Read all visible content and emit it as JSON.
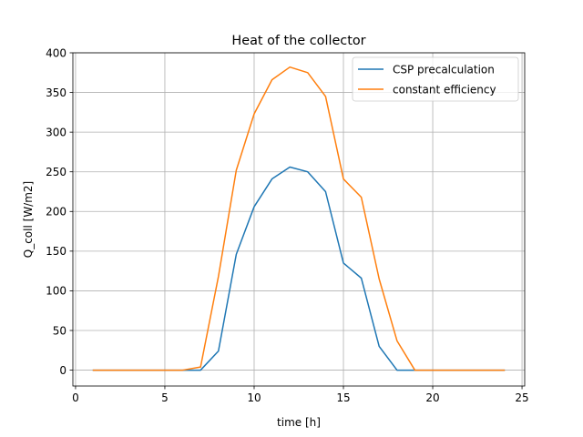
{
  "chart_data": {
    "type": "line",
    "title": "Heat of the collector",
    "xlabel": "time [h]",
    "ylabel": "Q_coll [W/m2]",
    "xlim": [
      -0.15,
      25.15
    ],
    "ylim": [
      -20,
      400
    ],
    "xticks": [
      0,
      5,
      10,
      15,
      20,
      25
    ],
    "yticks": [
      0,
      50,
      100,
      150,
      200,
      250,
      300,
      350,
      400
    ],
    "xtick_labels": [
      "0",
      "5",
      "10",
      "15",
      "20",
      "25"
    ],
    "ytick_labels": [
      "0",
      "50",
      "100",
      "150",
      "200",
      "250",
      "300",
      "350",
      "400"
    ],
    "grid": true,
    "legend_position": "top-right",
    "x": [
      1,
      2,
      3,
      4,
      5,
      6,
      7,
      8,
      9,
      10,
      11,
      12,
      13,
      14,
      15,
      16,
      17,
      18,
      19,
      20,
      21,
      22,
      23,
      24
    ],
    "series": [
      {
        "name": "CSP precalculation",
        "color": "#1f77b4",
        "values": [
          0,
          0,
          0,
          0,
          0,
          0,
          0,
          24,
          146,
          206,
          241,
          256,
          250,
          225,
          135,
          116,
          30,
          0,
          0,
          0,
          0,
          0,
          0,
          0
        ]
      },
      {
        "name": "constant efficiency",
        "color": "#ff7f0e",
        "values": [
          0,
          0,
          0,
          0,
          0,
          0,
          4,
          118,
          252,
          323,
          366,
          382,
          375,
          345,
          241,
          218,
          115,
          37,
          0,
          0,
          0,
          0,
          0,
          0
        ]
      }
    ]
  }
}
